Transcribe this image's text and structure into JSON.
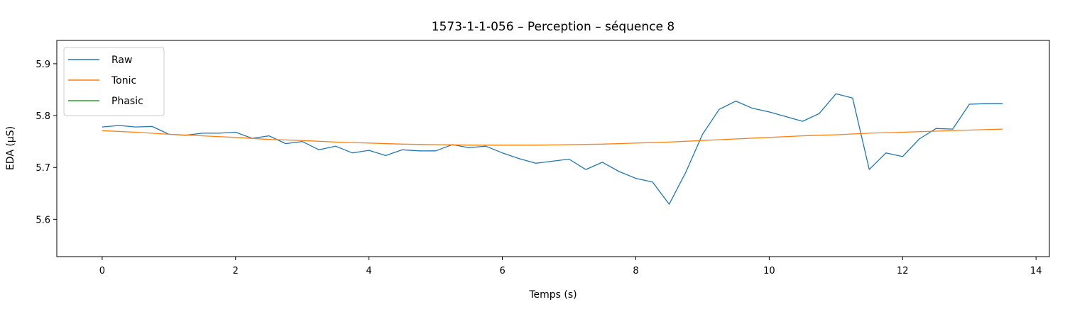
{
  "chart_data": {
    "type": "line",
    "title": "1573-1-1-056 – Perception – séquence 8",
    "xlabel": "Temps (s)",
    "ylabel": "EDA (µS)",
    "xlim": [
      -0.68,
      14.2
    ],
    "ylim": [
      5.528,
      5.945
    ],
    "xticks": [
      0,
      2,
      4,
      6,
      8,
      10,
      12,
      14
    ],
    "yticks": [
      5.6,
      5.7,
      5.8,
      5.9
    ],
    "grid": false,
    "legend": "top-left",
    "series": [
      {
        "name": "Raw",
        "color": "#1f77b4",
        "x": [
          0,
          0.25,
          0.5,
          0.75,
          1.0,
          1.25,
          1.5,
          1.75,
          2.0,
          2.25,
          2.5,
          2.75,
          3.0,
          3.25,
          3.5,
          3.75,
          4.0,
          4.25,
          4.5,
          4.75,
          5.0,
          5.25,
          5.5,
          5.75,
          6.0,
          6.25,
          6.5,
          6.75,
          7.0,
          7.25,
          7.5,
          7.75,
          8.0,
          8.25,
          8.5,
          8.75,
          9.0,
          9.25,
          9.5,
          9.75,
          10.0,
          10.25,
          10.5,
          10.75,
          11.0,
          11.25,
          11.5,
          11.75,
          12.0,
          12.25,
          12.5,
          12.75,
          13.0,
          13.25,
          13.5
        ],
        "y": [
          5.778,
          5.781,
          5.778,
          5.779,
          5.764,
          5.762,
          5.766,
          5.766,
          5.768,
          5.756,
          5.761,
          5.746,
          5.75,
          5.734,
          5.741,
          5.728,
          5.733,
          5.723,
          5.734,
          5.732,
          5.732,
          5.744,
          5.738,
          5.741,
          5.728,
          5.717,
          5.708,
          5.712,
          5.716,
          5.696,
          5.71,
          5.692,
          5.679,
          5.672,
          5.629,
          5.691,
          5.764,
          5.812,
          5.828,
          5.814,
          5.807,
          5.798,
          5.789,
          5.804,
          5.842,
          5.834,
          5.696,
          5.728,
          5.721,
          5.755,
          5.775,
          5.774,
          5.822,
          5.823,
          5.823
        ]
      },
      {
        "name": "Tonic",
        "color": "#ff7f0e",
        "x": [
          0,
          0.5,
          1.0,
          1.5,
          2.0,
          2.5,
          3.0,
          3.5,
          4.0,
          4.5,
          5.0,
          5.5,
          6.0,
          6.5,
          7.0,
          7.5,
          8.0,
          8.5,
          9.0,
          9.5,
          10.0,
          10.5,
          11.0,
          11.5,
          12.0,
          12.5,
          13.0,
          13.5
        ],
        "y": [
          5.771,
          5.768,
          5.764,
          5.761,
          5.758,
          5.754,
          5.752,
          5.749,
          5.747,
          5.745,
          5.744,
          5.743,
          5.743,
          5.743,
          5.744,
          5.745,
          5.747,
          5.749,
          5.752,
          5.755,
          5.758,
          5.761,
          5.763,
          5.766,
          5.768,
          5.77,
          5.772,
          5.774
        ]
      },
      {
        "name": "Phasic",
        "color": "#2ca02c",
        "x": [],
        "y": []
      }
    ]
  }
}
